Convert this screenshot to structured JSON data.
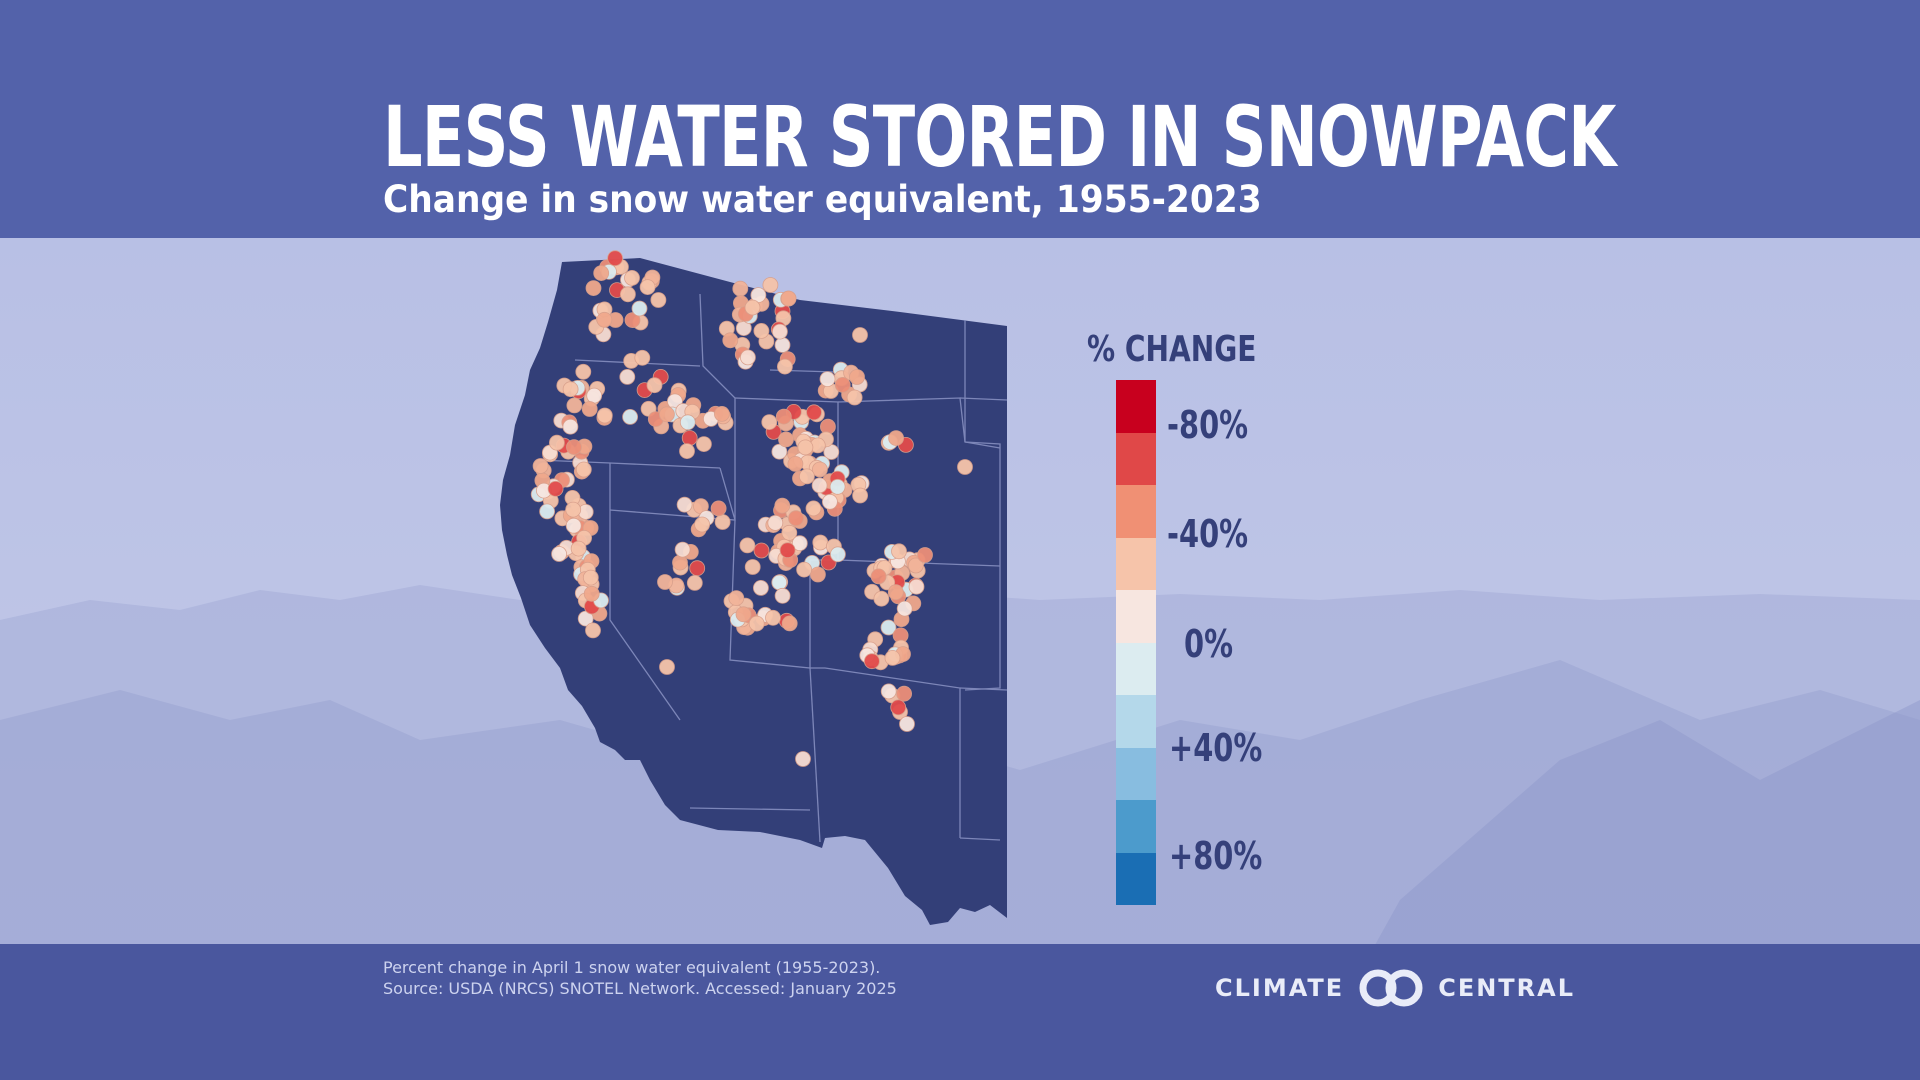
{
  "header": {
    "title": "LESS WATER STORED IN SNOWPACK",
    "subtitle": "Change in snow water equivalent, 1955-2023"
  },
  "legend": {
    "title": "% CHANGE",
    "ticks": [
      "-80%",
      "-40%",
      "0%",
      "+40%",
      "+80%"
    ],
    "colors": [
      "#c8001e",
      "#e04848",
      "#f09074",
      "#f6c4aa",
      "#f7e6e0",
      "#dcecf0",
      "#b4d8ea",
      "#88bde0",
      "#4c9bcc",
      "#1a6eb4"
    ]
  },
  "map": {
    "land_color": "#333f78",
    "border_color": "#8a93c4"
  },
  "footer": {
    "note_line1": "Percent change in April 1 snow water equivalent (1955-2023).",
    "note_line2": "Source: USDA (NRCS) SNOTEL Network. Accessed: January 2025",
    "logo_left": "CLIMATE",
    "logo_right": "CENTRAL"
  },
  "colors": {
    "header_bg": "#5362aa",
    "footer_bg": "#4a579e",
    "legend_text": "#35407a"
  }
}
